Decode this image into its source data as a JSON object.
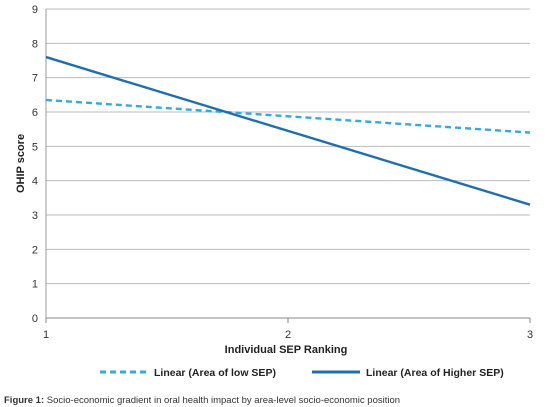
{
  "caption": {
    "label": "Figure 1:",
    "text": " Socio-economic gradient in oral health impact by area-level socio-economic position"
  },
  "chart_data": {
    "type": "line",
    "title": "",
    "xlabel": "Individual SEP Ranking",
    "ylabel": "OHIP score",
    "xlim": [
      1,
      3
    ],
    "ylim": [
      0,
      9
    ],
    "x_ticks": [
      1,
      2,
      3
    ],
    "y_ticks": [
      0,
      1,
      2,
      3,
      4,
      5,
      6,
      7,
      8,
      9
    ],
    "grid": "horizontal",
    "legend_position": "bottom",
    "series": [
      {
        "name": "Linear (Area of low SEP)",
        "style": "dashed",
        "color": "#33aadd",
        "x": [
          1,
          3
        ],
        "y": [
          6.35,
          5.4
        ]
      },
      {
        "name": "Linear (Area of Higher SEP)",
        "style": "solid",
        "color": "#1f6fae",
        "x": [
          1,
          3
        ],
        "y": [
          7.6,
          3.3
        ]
      }
    ]
  }
}
